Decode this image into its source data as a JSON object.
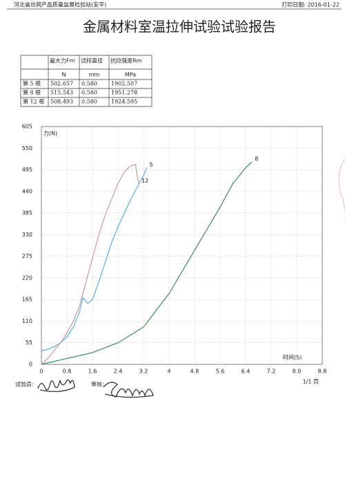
{
  "header": {
    "station": "河北省丝网产品质量监督检验站(安平)",
    "print_date": "打印日期: 2016-01-22"
  },
  "title": "金属材料室温拉伸试验试验报告",
  "table": {
    "header": [
      "最大力Fm",
      "试样直径",
      "抗拉强度Rm"
    ],
    "units": [
      "N",
      "mm",
      "MPa"
    ],
    "rows": [
      [
        "第 5 根",
        "502.657",
        "0.580",
        "1902.507"
      ],
      [
        "第 8 根",
        "515.543",
        "0.580",
        "1951.278"
      ],
      [
        "第 12 根",
        "508.493",
        "0.580",
        "1924.595"
      ]
    ]
  },
  "chart_data": {
    "type": "line",
    "y_label": "力(N)",
    "x_label": "时间(S)",
    "grid": true,
    "xlim": [
      0,
      8.8
    ],
    "ylim": [
      0,
      605
    ],
    "xticks": [
      0,
      0.8,
      1.6,
      2.4,
      3.2,
      4,
      4.8,
      5.6,
      6.4,
      7.2,
      {
        "value": 8,
        "label": "8.0"
      },
      8.8
    ],
    "yticks": [
      0,
      55,
      110,
      165,
      220,
      275,
      330,
      385,
      440,
      495,
      550,
      605
    ],
    "series": [
      {
        "name": "5",
        "color": "#5aaee0",
        "x": [
          0,
          0.2,
          0.4,
          0.6,
          0.8,
          1.0,
          1.2,
          1.3,
          1.45,
          1.6,
          1.8,
          2.0,
          2.2,
          2.4,
          2.6,
          2.8,
          3.0,
          3.2,
          3.3
        ],
        "values": [
          35,
          38,
          45,
          55,
          70,
          95,
          135,
          170,
          155,
          165,
          210,
          260,
          310,
          350,
          385,
          420,
          450,
          480,
          500
        ]
      },
      {
        "name": "8",
        "color": "#3e8a5a",
        "x": [
          0,
          0.8,
          1.6,
          2.4,
          3.2,
          4.0,
          4.8,
          5.6,
          6.0,
          6.4,
          6.6
        ],
        "values": [
          0,
          15,
          30,
          55,
          95,
          180,
          290,
          400,
          460,
          500,
          515
        ]
      },
      {
        "name": "12",
        "color": "#c89a9a",
        "x": [
          0,
          0.2,
          0.4,
          0.6,
          0.8,
          1.0,
          1.2,
          1.4,
          1.6,
          1.8,
          2.0,
          2.2,
          2.4,
          2.6,
          2.8,
          2.95,
          3.0,
          3.05
        ],
        "values": [
          0,
          15,
          35,
          55,
          80,
          110,
          150,
          210,
          270,
          330,
          380,
          420,
          460,
          490,
          505,
          508,
          480,
          460
        ]
      }
    ]
  },
  "footer": {
    "tester": "试验员:",
    "reviewer": "审核:",
    "page": "1/1 页"
  }
}
